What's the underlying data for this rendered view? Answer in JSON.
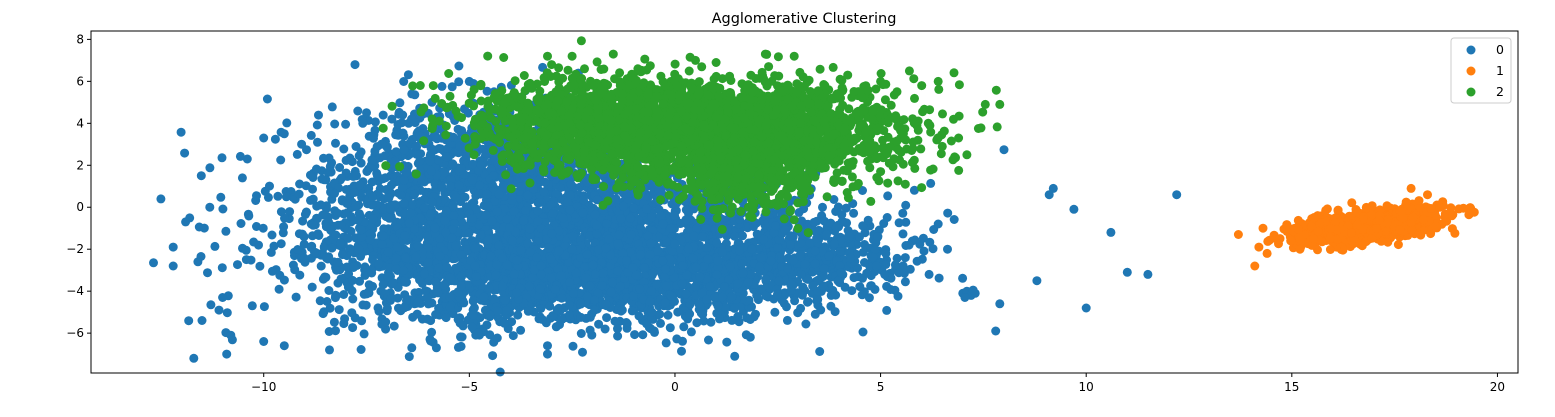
{
  "chart_data": {
    "type": "scatter",
    "title": "Agglomerative Clustering",
    "xlabel": "",
    "ylabel": "",
    "xlim": [
      -14.2,
      20.5
    ],
    "ylim": [
      -7.9,
      8.4
    ],
    "x_ticks": [
      -10,
      -5,
      0,
      5,
      10,
      15,
      20
    ],
    "y_ticks": [
      -6,
      -4,
      -2,
      0,
      2,
      4,
      6,
      8
    ],
    "grid": false,
    "legend_position": "top-right",
    "series": [
      {
        "name": "0",
        "color": "#1f77b4",
        "blobs": [
          {
            "cx": -2.5,
            "cy": -1.4,
            "sx": 2.9,
            "sy": 1.9,
            "n": 2600
          },
          {
            "cx": -6.0,
            "cy": -0.4,
            "sx": 2.0,
            "sy": 2.4,
            "n": 900
          },
          {
            "cx": -1.5,
            "cy": -3.7,
            "sx": 2.6,
            "sy": 0.9,
            "n": 800
          },
          {
            "cx": -4.3,
            "cy": 2.7,
            "sx": 1.5,
            "sy": 1.2,
            "n": 400
          },
          {
            "cx": 2.8,
            "cy": -2.3,
            "sx": 1.4,
            "sy": 1.1,
            "n": 500
          }
        ],
        "points": [
          [
            -12.5,
            0.4
          ],
          [
            -12.2,
            -1.9
          ],
          [
            -12.2,
            -2.8
          ],
          [
            -11.9,
            -0.7
          ],
          [
            -11.6,
            -2.6
          ],
          [
            -11.5,
            -5.4
          ],
          [
            -11.0,
            -4.3
          ],
          [
            -10.9,
            -7.0
          ],
          [
            -10.8,
            -6.1
          ],
          [
            -11.7,
            -7.2
          ],
          [
            -10.0,
            -6.4
          ],
          [
            -9.5,
            -6.6
          ],
          [
            -8.4,
            -6.8
          ],
          [
            -6.4,
            -6.7
          ],
          [
            -5.8,
            -6.7
          ],
          [
            -3.1,
            -7.0
          ],
          [
            -3.1,
            -6.6
          ],
          [
            -5.0,
            6.0
          ],
          [
            -4.9,
            5.9
          ],
          [
            -4.4,
            5.5
          ],
          [
            -6.4,
            5.4
          ],
          [
            -7.5,
            4.5
          ],
          [
            -9.5,
            3.5
          ],
          [
            -10.0,
            3.3
          ],
          [
            -10.4,
            2.3
          ],
          [
            6.4,
            -0.8
          ],
          [
            5.6,
            -2.4
          ],
          [
            5.1,
            -3.2
          ],
          [
            7.9,
            -4.6
          ],
          [
            7.8,
            -5.9
          ],
          [
            8.8,
            -3.5
          ],
          [
            9.1,
            0.6
          ],
          [
            9.2,
            0.9
          ],
          [
            9.7,
            -0.1
          ],
          [
            10.0,
            -4.8
          ],
          [
            10.6,
            -1.2
          ],
          [
            11.0,
            -3.1
          ],
          [
            11.5,
            -3.2
          ],
          [
            12.2,
            0.6
          ],
          [
            7.0,
            -4.1
          ],
          [
            7.1,
            -4.0
          ],
          [
            7.2,
            -4.2
          ],
          [
            7.3,
            -4.1
          ],
          [
            7.05,
            -4.3
          ],
          [
            7.25,
            -3.95
          ]
        ]
      },
      {
        "name": "1",
        "color": "#ff7f0e",
        "blobs": [
          {
            "cx": 16.8,
            "cy": -0.9,
            "sx": 0.8,
            "sy": 0.38,
            "n": 1500,
            "corr": 0.55
          }
        ],
        "points": [
          [
            13.7,
            -1.3
          ],
          [
            14.1,
            -2.8
          ],
          [
            14.2,
            -1.9
          ],
          [
            14.3,
            -1.0
          ],
          [
            14.4,
            -2.2
          ],
          [
            18.6,
            0.0
          ],
          [
            18.3,
            0.6
          ],
          [
            17.9,
            0.9
          ],
          [
            18.5,
            -0.9
          ],
          [
            15.2,
            -2.0
          ]
        ]
      },
      {
        "name": "2",
        "color": "#2ca02c",
        "blobs": [
          {
            "cx": 0.4,
            "cy": 3.7,
            "sx": 2.3,
            "sy": 1.1,
            "n": 2200
          },
          {
            "cx": 2.8,
            "cy": 3.5,
            "sx": 1.6,
            "sy": 1.2,
            "n": 600
          },
          {
            "cx": -2.0,
            "cy": 4.5,
            "sx": 1.4,
            "sy": 0.9,
            "n": 500
          },
          {
            "cx": 1.5,
            "cy": 1.5,
            "sx": 1.1,
            "sy": 0.9,
            "n": 300
          }
        ],
        "points": [
          [
            -3.1,
            7.2
          ],
          [
            -2.5,
            7.2
          ],
          [
            -1.5,
            7.3
          ],
          [
            -3.0,
            6.8
          ],
          [
            -2.2,
            6.6
          ],
          [
            2.2,
            7.3
          ],
          [
            2.9,
            7.2
          ],
          [
            1.0,
            6.9
          ],
          [
            0.5,
            7.0
          ],
          [
            -0.9,
            6.6
          ],
          [
            4.2,
            6.3
          ],
          [
            5.0,
            6.0
          ],
          [
            5.7,
            6.5
          ],
          [
            6.4,
            6.0
          ],
          [
            6.0,
            5.8
          ],
          [
            7.9,
            4.9
          ],
          [
            6.5,
            2.9
          ],
          [
            6.4,
            3.3
          ],
          [
            6.2,
            3.9
          ],
          [
            5.4,
            5.5
          ],
          [
            7.1,
            2.5
          ],
          [
            6.8,
            2.4
          ],
          [
            5.6,
            1.1
          ],
          [
            5.0,
            1.7
          ],
          [
            3.7,
            0.5
          ],
          [
            2.9,
            -0.6
          ],
          [
            1.6,
            -0.2
          ],
          [
            1.9,
            0.2
          ]
        ]
      }
    ]
  }
}
